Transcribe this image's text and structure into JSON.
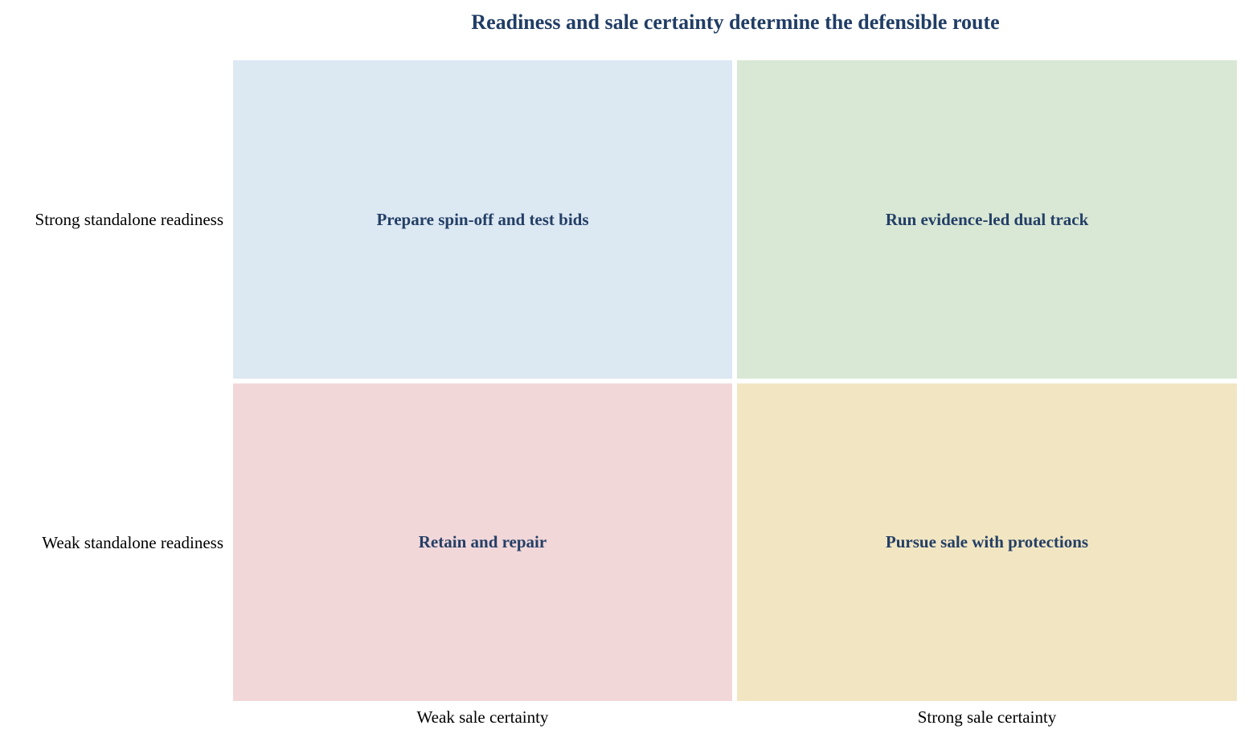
{
  "title": "Readiness and sale certainty determine the defensible route",
  "rows": {
    "top": "Strong standalone readiness",
    "bottom": "Weak standalone readiness"
  },
  "columns": {
    "left": "Weak sale certainty",
    "right": "Strong sale certainty"
  },
  "quadrants": {
    "top_left": {
      "label": "Prepare spin-off and test bids",
      "color": "#dce8f2"
    },
    "top_right": {
      "label": "Run evidence-led dual track",
      "color": "#d9e8d5"
    },
    "bottom_left": {
      "label": "Retain and repair",
      "color": "#f2d7d9"
    },
    "bottom_right": {
      "label": "Pursue sale with protections",
      "color": "#f2e6c2"
    }
  }
}
